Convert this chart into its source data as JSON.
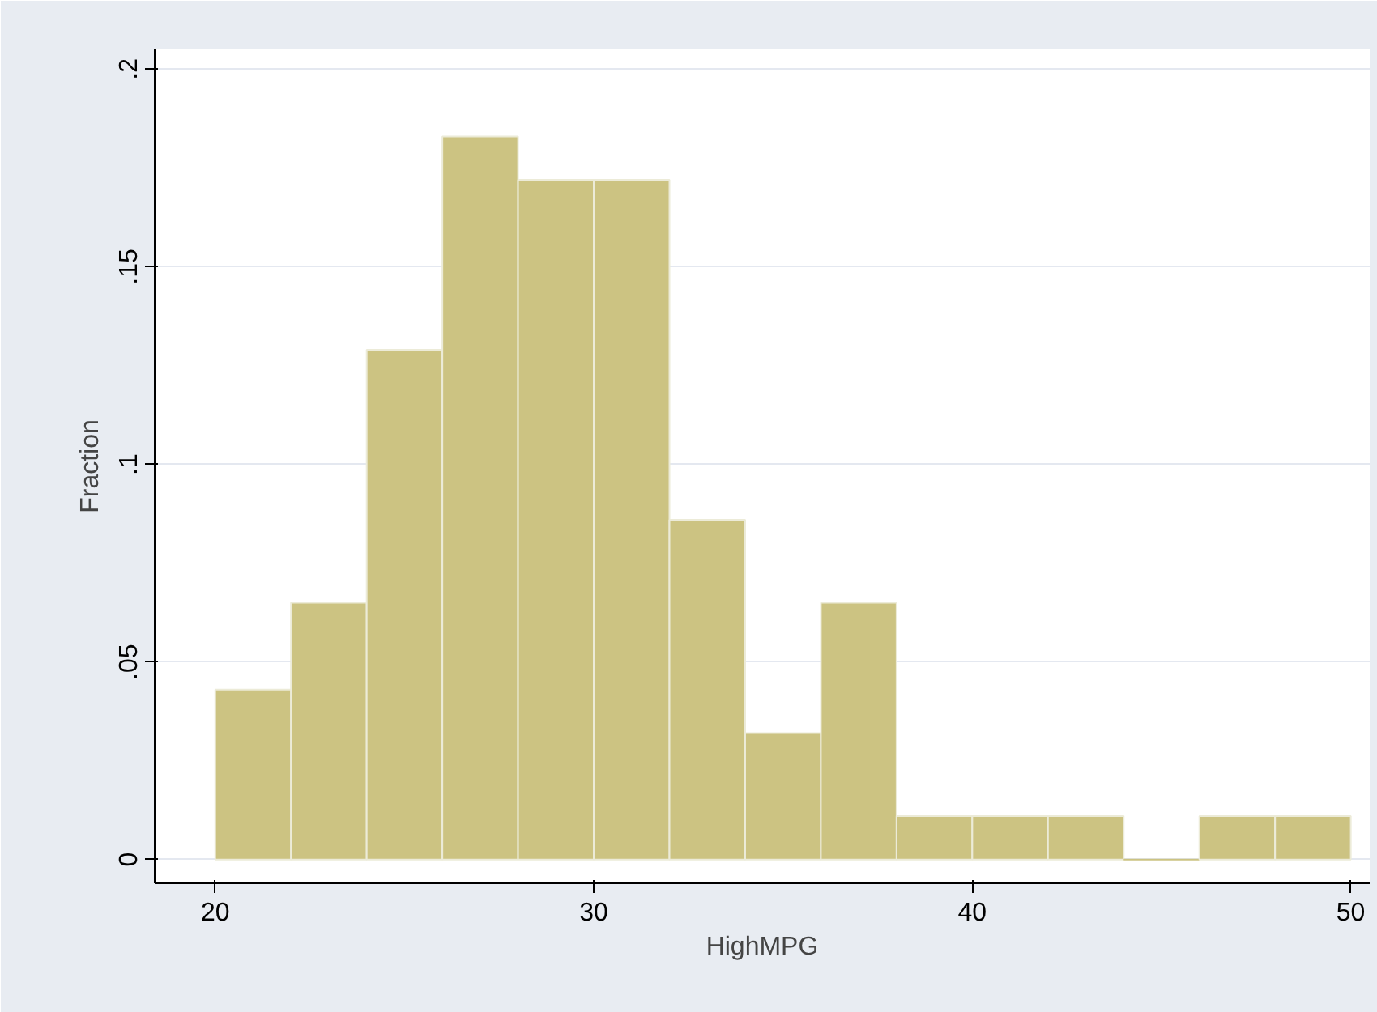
{
  "chart_data": {
    "type": "histogram",
    "xlabel": "HighMPG",
    "ylabel": "Fraction",
    "bins": [
      20,
      22,
      24,
      26,
      28,
      30,
      32,
      34,
      36,
      38,
      40,
      42,
      44,
      46,
      48,
      50
    ],
    "values": [
      0.043,
      0.065,
      0.129,
      0.183,
      0.172,
      0.172,
      0.086,
      0.032,
      0.065,
      0.011,
      0.011,
      0.011,
      0,
      0.011,
      0.011
    ],
    "color": "#ccc382",
    "xlim": [
      18.4,
      50.5
    ],
    "ylim": [
      -0.006,
      0.205
    ],
    "xticks": [
      20,
      30,
      40,
      50
    ],
    "yticks": [
      {
        "value": 0,
        "label": "0"
      },
      {
        "value": 0.05,
        "label": ".05"
      },
      {
        "value": 0.1,
        "label": ".1"
      },
      {
        "value": 0.15,
        "label": ".15"
      },
      {
        "value": 0.2,
        "label": ".2"
      }
    ],
    "grid": "y"
  }
}
